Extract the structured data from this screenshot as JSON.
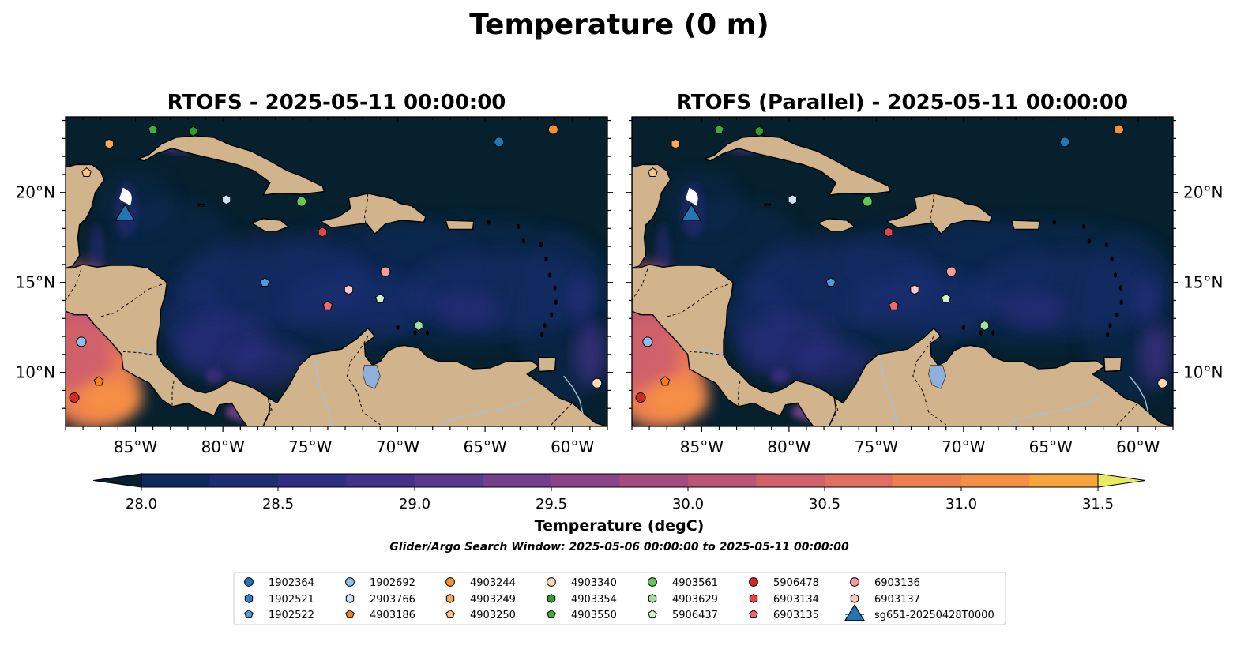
{
  "figure": {
    "title": "Temperature (0 m)",
    "search_window": "Glider/Argo Search Window: 2025-05-06 00:00:00 to 2025-05-11 00:00:00"
  },
  "panels": [
    {
      "title": "RTOFS - 2025-05-11 00:00:00"
    },
    {
      "title": "RTOFS (Parallel) - 2025-05-11 00:00:00"
    }
  ],
  "map_extent": {
    "lon_min": -89,
    "lon_max": -58,
    "lat_min": 7,
    "lat_max": 24.2
  },
  "lon_ticks": [
    {
      "value": -85,
      "label": "85°W"
    },
    {
      "value": -80,
      "label": "80°W"
    },
    {
      "value": -75,
      "label": "75°W"
    },
    {
      "value": -70,
      "label": "70°W"
    },
    {
      "value": -65,
      "label": "65°W"
    },
    {
      "value": -60,
      "label": "60°W"
    }
  ],
  "lat_ticks": [
    {
      "value": 20,
      "label": "20°N"
    },
    {
      "value": 15,
      "label": "15°N"
    },
    {
      "value": 10,
      "label": "10°N"
    }
  ],
  "colorbar": {
    "label": "Temperature (degC)",
    "min": 28.0,
    "max": 31.5,
    "step": 0.25,
    "extend": "both",
    "ticks": [
      {
        "value": 28.0,
        "label": "28.0"
      },
      {
        "value": 28.5,
        "label": "28.5"
      },
      {
        "value": 29.0,
        "label": "29.0"
      },
      {
        "value": 29.5,
        "label": "29.5"
      },
      {
        "value": 30.0,
        "label": "30.0"
      },
      {
        "value": 30.5,
        "label": "30.5"
      },
      {
        "value": 31.0,
        "label": "31.0"
      },
      {
        "value": 31.5,
        "label": "31.5"
      }
    ],
    "colors": [
      "#06202e",
      "#0e2a5c",
      "#1f2d74",
      "#2e2e85",
      "#423289",
      "#5a3a8c",
      "#743f8c",
      "#8b448a",
      "#a44b82",
      "#bb5577",
      "#d0616b",
      "#e06f5f",
      "#ee7f51",
      "#f58f44",
      "#f9a43d",
      "#f7c244",
      "#e8ea62"
    ],
    "under_color": "#06202e",
    "over_color": "#e8ea62"
  },
  "colors": {
    "land": "#d2b48c",
    "river": "#a6c0d8",
    "lake": "#8fb0dc",
    "coast": "#000000"
  },
  "floats": [
    {
      "id": "1902364",
      "marker": "circle",
      "color": "#1f77b4",
      "lon": -64.2,
      "lat": 22.8
    },
    {
      "id": "1902521",
      "marker": "hexagon",
      "color": "#2b83c6",
      "lon": null,
      "lat": null
    },
    {
      "id": "1902522",
      "marker": "pentagon",
      "color": "#4a9fd8",
      "lon": -77.6,
      "lat": 15.0
    },
    {
      "id": "1902692",
      "marker": "circle",
      "color": "#8fc1ea",
      "lon": -88.1,
      "lat": 11.7
    },
    {
      "id": "2903766",
      "marker": "hexagon",
      "color": "#c8e2f6",
      "lon": -79.8,
      "lat": 19.6
    },
    {
      "id": "4903186",
      "marker": "pentagon",
      "color": "#ff7f0e",
      "lon": -87.1,
      "lat": 9.5
    },
    {
      "id": "4903244",
      "marker": "circle",
      "color": "#f5922f",
      "lon": -61.1,
      "lat": 23.5
    },
    {
      "id": "4903249",
      "marker": "hexagon",
      "color": "#fba65a",
      "lon": -86.5,
      "lat": 22.7
    },
    {
      "id": "4903250",
      "marker": "pentagon",
      "color": "#ffc08a",
      "lon": -87.8,
      "lat": 21.1
    },
    {
      "id": "4903340",
      "marker": "circle",
      "color": "#fdd9b5",
      "lon": -58.6,
      "lat": 9.4
    },
    {
      "id": "4903354",
      "marker": "hexagon",
      "color": "#2ca02c",
      "lon": -81.7,
      "lat": 23.4
    },
    {
      "id": "4903550",
      "marker": "pentagon",
      "color": "#3cae3c",
      "lon": -84.0,
      "lat": 23.5
    },
    {
      "id": "4903561",
      "marker": "circle",
      "color": "#62c85a",
      "lon": -75.5,
      "lat": 19.5
    },
    {
      "id": "4903629",
      "marker": "hexagon",
      "color": "#9fe09a",
      "lon": -68.8,
      "lat": 12.6
    },
    {
      "id": "5906437",
      "marker": "pentagon",
      "color": "#ccf5c3",
      "lon": -71.0,
      "lat": 14.1
    },
    {
      "id": "5906478",
      "marker": "circle",
      "color": "#d62728",
      "lon": -88.5,
      "lat": 8.6
    },
    {
      "id": "6903134",
      "marker": "hexagon",
      "color": "#e34545",
      "lon": -74.3,
      "lat": 17.8
    },
    {
      "id": "6903135",
      "marker": "pentagon",
      "color": "#ef6a6a",
      "lon": -74.0,
      "lat": 13.7
    },
    {
      "id": "6903136",
      "marker": "circle",
      "color": "#f59b9b",
      "lon": -70.7,
      "lat": 15.6
    },
    {
      "id": "6903137",
      "marker": "hexagon",
      "color": "#fcc6c6",
      "lon": -72.8,
      "lat": 14.6
    },
    {
      "id": "sg651-20250428T0000",
      "marker": "triangle",
      "color": "#1f77b4",
      "lon": -85.6,
      "lat": 18.8
    }
  ]
}
